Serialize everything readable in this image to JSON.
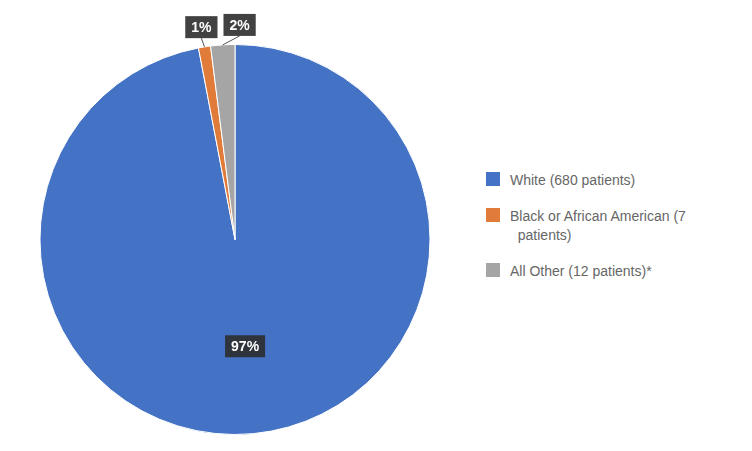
{
  "chart_data": {
    "type": "pie",
    "categories": [
      "White (680 patients)",
      "Black or African American (7\n  patients)",
      "All Other (12 patients)*"
    ],
    "values": [
      97,
      1,
      2
    ],
    "value_labels": [
      "97%",
      "1%",
      "2%"
    ],
    "colors": [
      "#4472C4",
      "#E07B39",
      "#A5A5A5"
    ],
    "data_labels": true,
    "legend": "right"
  }
}
